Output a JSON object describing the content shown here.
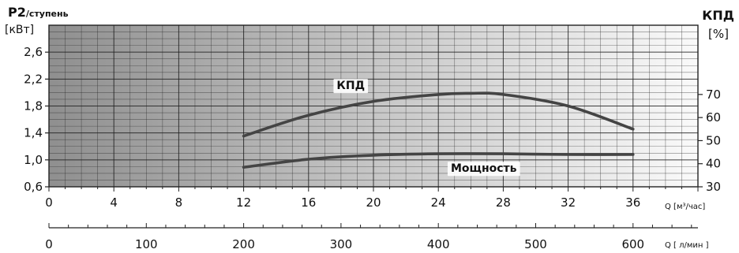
{
  "chart_data": {
    "type": "line",
    "left_axis": {
      "title_main": "P2",
      "title_suffix": "/ступень",
      "unit": "[кВт]",
      "range": [
        0.6,
        3.0
      ],
      "ticks": [
        0.6,
        1.0,
        1.4,
        1.8,
        2.2,
        2.6
      ],
      "tick_labels": [
        "0,6",
        "1,0",
        "1,4",
        "1,8",
        "2,2",
        "2,6"
      ]
    },
    "right_axis": {
      "title": "КПД",
      "unit": "[%]",
      "range": [
        30,
        100
      ],
      "ticks": [
        30,
        40,
        50,
        60,
        70
      ],
      "tick_labels": [
        "30",
        "40",
        "50",
        "60",
        "70"
      ]
    },
    "x_axis_primary": {
      "label": "Q [м³/час]",
      "range": [
        0,
        40
      ],
      "ticks": [
        0,
        4,
        8,
        12,
        16,
        20,
        24,
        28,
        32,
        36
      ],
      "tick_labels": [
        "0",
        "4",
        "8",
        "12",
        "16",
        "20",
        "24",
        "28",
        "32",
        "36"
      ]
    },
    "x_axis_secondary": {
      "label": "Q [ л/мин ]",
      "range": [
        0,
        666.67
      ],
      "ticks": [
        0,
        100,
        200,
        300,
        400,
        500,
        600
      ],
      "tick_labels": [
        "0",
        "100",
        "200",
        "300",
        "400",
        "500",
        "600"
      ]
    },
    "series": [
      {
        "name": "КПД",
        "axis": "right",
        "color": "#444444",
        "x": [
          12,
          16,
          20,
          24,
          26,
          28,
          32,
          36
        ],
        "y": [
          52,
          61,
          67,
          70,
          70.5,
          70,
          65,
          55
        ]
      },
      {
        "name": "Мощность",
        "axis": "left",
        "color": "#444444",
        "x": [
          12,
          16,
          20,
          24,
          28,
          32,
          36
        ],
        "y": [
          0.89,
          1.01,
          1.07,
          1.09,
          1.09,
          1.08,
          1.08
        ]
      }
    ],
    "grid": true
  }
}
